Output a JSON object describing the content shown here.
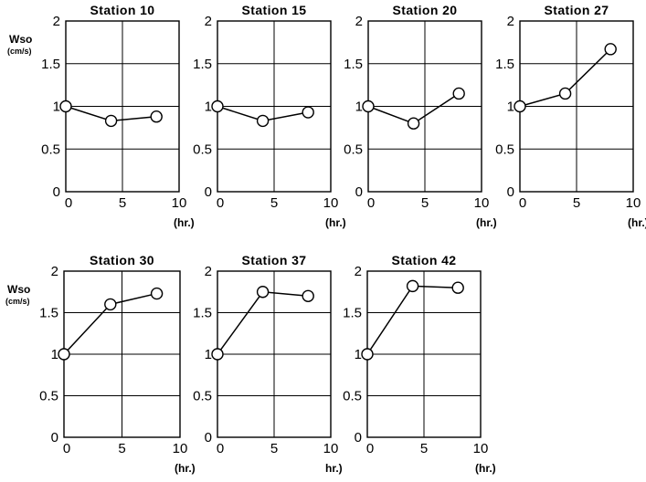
{
  "chart_data": [
    {
      "type": "line",
      "title": "Station 10",
      "ylabel": "Wso",
      "yunit": "(cm/s)",
      "xunit": "(hr.)",
      "x": [
        0,
        4,
        8
      ],
      "values": [
        1.0,
        0.83,
        0.88
      ],
      "xlim": [
        0,
        10
      ],
      "ylim": [
        0,
        2
      ],
      "xticks": [
        "0",
        "5",
        "10"
      ],
      "yticks": [
        "0",
        "0.5",
        "1",
        "1.5",
        "2"
      ],
      "grid": true
    },
    {
      "type": "line",
      "title": "Station 15",
      "ylabel": "",
      "yunit": "",
      "xunit": "(hr.)",
      "x": [
        0,
        4,
        8
      ],
      "values": [
        1.0,
        0.83,
        0.93
      ],
      "xlim": [
        0,
        10
      ],
      "ylim": [
        0,
        2
      ],
      "xticks": [
        "0",
        "5",
        "10"
      ],
      "yticks": [
        "0",
        "0.5",
        "1",
        "1.5",
        "2"
      ],
      "grid": true
    },
    {
      "type": "line",
      "title": "Station 20",
      "ylabel": "",
      "yunit": "",
      "xunit": "(hr.)",
      "x": [
        0,
        4,
        8
      ],
      "values": [
        1.0,
        0.8,
        1.15
      ],
      "xlim": [
        0,
        10
      ],
      "ylim": [
        0,
        2
      ],
      "xticks": [
        "0",
        "5",
        "10"
      ],
      "yticks": [
        "0",
        "0.5",
        "1",
        "1.5",
        "2"
      ],
      "grid": true
    },
    {
      "type": "line",
      "title": "Station 27",
      "ylabel": "",
      "yunit": "",
      "xunit": "(hr.)",
      "x": [
        0,
        4,
        8
      ],
      "values": [
        1.0,
        1.15,
        1.67
      ],
      "xlim": [
        0,
        10
      ],
      "ylim": [
        0,
        2
      ],
      "xticks": [
        "0",
        "5",
        "10"
      ],
      "yticks": [
        "0",
        "0.5",
        "1",
        "1.5",
        "2"
      ],
      "grid": true
    },
    {
      "type": "line",
      "title": "Station 30",
      "ylabel": "Wso",
      "yunit": "(cm/s)",
      "xunit": "(hr.)",
      "x": [
        0,
        4,
        8
      ],
      "values": [
        1.0,
        1.6,
        1.73
      ],
      "xlim": [
        0,
        10
      ],
      "ylim": [
        0,
        2
      ],
      "xticks": [
        "0",
        "5",
        "10"
      ],
      "yticks": [
        "0",
        "0.5",
        "1",
        "1.5",
        "2"
      ],
      "grid": true
    },
    {
      "type": "line",
      "title": "Station 37",
      "ylabel": "",
      "yunit": "",
      "xunit": "hr.)",
      "x": [
        0,
        4,
        8
      ],
      "values": [
        1.0,
        1.75,
        1.7
      ],
      "xlim": [
        0,
        10
      ],
      "ylim": [
        0,
        2
      ],
      "xticks": [
        "0",
        "5",
        "10"
      ],
      "yticks": [
        "0",
        "0.5",
        "1",
        "1.5",
        "2"
      ],
      "grid": true
    },
    {
      "type": "line",
      "title": "Station 42",
      "ylabel": "",
      "yunit": "",
      "xunit": "(hr.)",
      "x": [
        0,
        4,
        8
      ],
      "values": [
        1.0,
        1.82,
        1.8
      ],
      "xlim": [
        0,
        10
      ],
      "ylim": [
        0,
        2
      ],
      "xticks": [
        "0",
        "5",
        "10"
      ],
      "yticks": [
        "0",
        "0.5",
        "1",
        "1.5",
        "2"
      ],
      "grid": true
    }
  ]
}
